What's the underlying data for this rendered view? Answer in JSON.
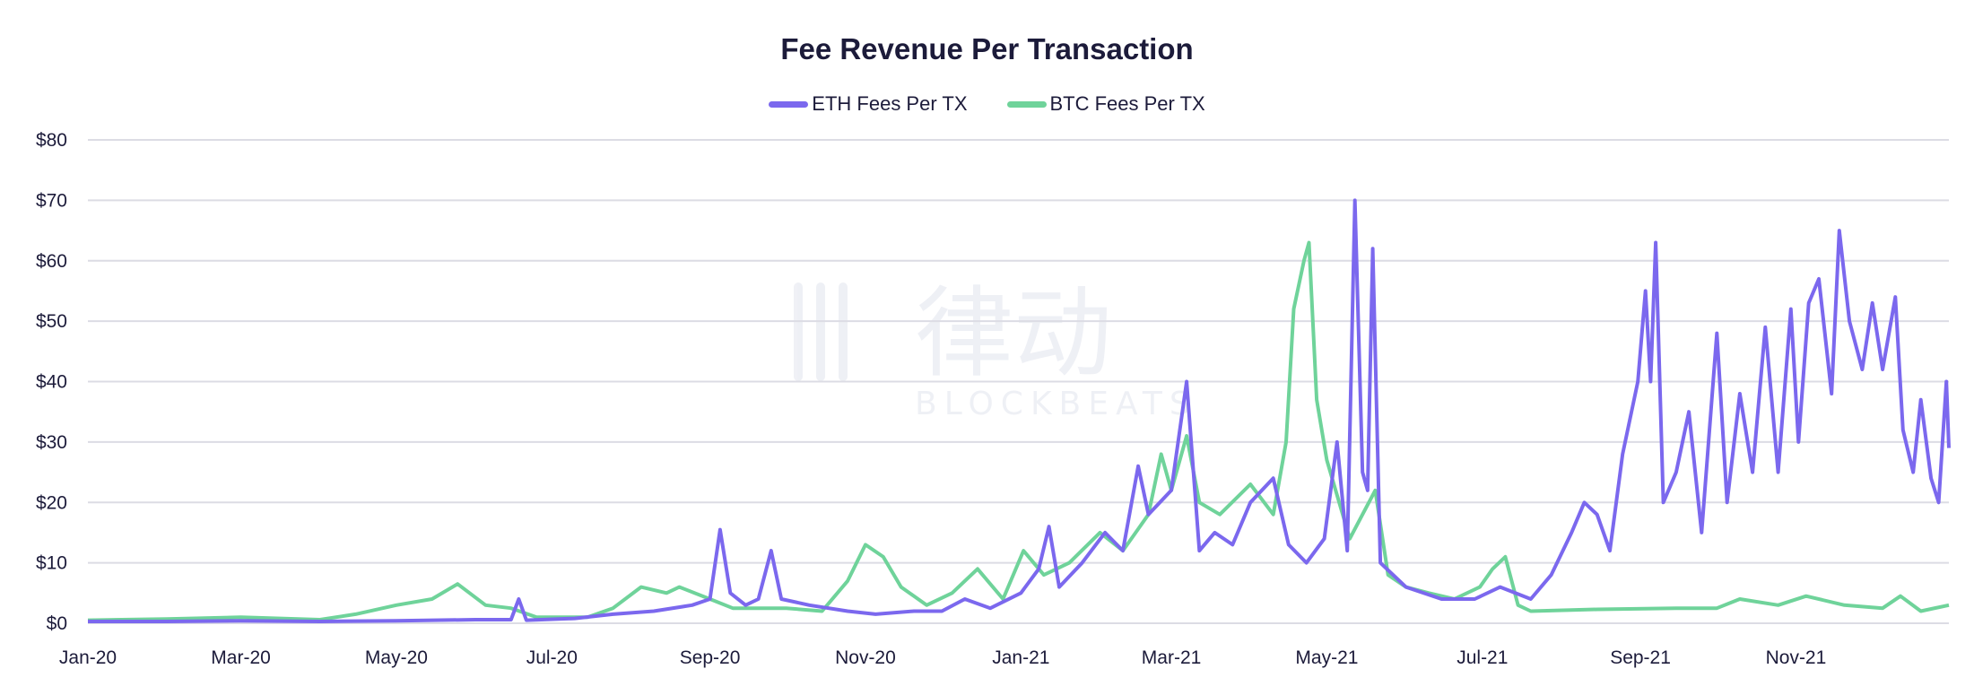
{
  "chart_data": {
    "type": "line",
    "title": "Fee Revenue Per Transaction",
    "xlabel": "",
    "ylabel": "",
    "ylim": [
      0,
      80
    ],
    "xlim": [
      "2020-01-01",
      "2021-12-31"
    ],
    "y_ticks": [
      "$0",
      "$10",
      "$20",
      "$30",
      "$40",
      "$50",
      "$60",
      "$70",
      "$80"
    ],
    "x_ticks": [
      {
        "date": "2020-01-01",
        "label": "Jan-20"
      },
      {
        "date": "2020-03-01",
        "label": "Mar-20"
      },
      {
        "date": "2020-05-01",
        "label": "May-20"
      },
      {
        "date": "2020-07-01",
        "label": "Jul-20"
      },
      {
        "date": "2020-09-01",
        "label": "Sep-20"
      },
      {
        "date": "2020-11-01",
        "label": "Nov-20"
      },
      {
        "date": "2021-01-01",
        "label": "Jan-21"
      },
      {
        "date": "2021-03-01",
        "label": "Mar-21"
      },
      {
        "date": "2021-05-01",
        "label": "May-21"
      },
      {
        "date": "2021-07-01",
        "label": "Jul-21"
      },
      {
        "date": "2021-09-01",
        "label": "Sep-21"
      },
      {
        "date": "2021-11-01",
        "label": "Nov-21"
      }
    ],
    "grid": true,
    "legend_position": "top-center",
    "series": [
      {
        "name": "ETH Fees Per TX",
        "color": "#7b68ee",
        "points": [
          [
            "2020-01-01",
            0.3
          ],
          [
            "2020-02-01",
            0.3
          ],
          [
            "2020-03-01",
            0.4
          ],
          [
            "2020-04-01",
            0.3
          ],
          [
            "2020-05-01",
            0.4
          ],
          [
            "2020-06-01",
            0.6
          ],
          [
            "2020-06-15",
            0.6
          ],
          [
            "2020-06-18",
            4
          ],
          [
            "2020-06-21",
            0.5
          ],
          [
            "2020-07-10",
            0.8
          ],
          [
            "2020-07-25",
            1.5
          ],
          [
            "2020-08-10",
            2
          ],
          [
            "2020-08-25",
            3
          ],
          [
            "2020-09-01",
            4
          ],
          [
            "2020-09-05",
            15.5
          ],
          [
            "2020-09-09",
            5
          ],
          [
            "2020-09-15",
            3
          ],
          [
            "2020-09-20",
            4
          ],
          [
            "2020-09-25",
            12
          ],
          [
            "2020-09-29",
            4
          ],
          [
            "2020-10-10",
            3
          ],
          [
            "2020-10-25",
            2
          ],
          [
            "2020-11-05",
            1.5
          ],
          [
            "2020-11-20",
            2
          ],
          [
            "2020-12-01",
            2
          ],
          [
            "2020-12-10",
            4
          ],
          [
            "2020-12-20",
            2.5
          ],
          [
            "2021-01-01",
            5
          ],
          [
            "2021-01-08",
            9
          ],
          [
            "2021-01-12",
            16
          ],
          [
            "2021-01-16",
            6
          ],
          [
            "2021-01-25",
            10
          ],
          [
            "2021-02-03",
            15
          ],
          [
            "2021-02-10",
            12
          ],
          [
            "2021-02-16",
            26
          ],
          [
            "2021-02-20",
            18
          ],
          [
            "2021-03-01",
            22
          ],
          [
            "2021-03-07",
            40
          ],
          [
            "2021-03-12",
            12
          ],
          [
            "2021-03-18",
            15
          ],
          [
            "2021-03-25",
            13
          ],
          [
            "2021-04-01",
            20
          ],
          [
            "2021-04-10",
            24
          ],
          [
            "2021-04-16",
            13
          ],
          [
            "2021-04-23",
            10
          ],
          [
            "2021-04-30",
            14
          ],
          [
            "2021-05-05",
            30
          ],
          [
            "2021-05-09",
            12
          ],
          [
            "2021-05-12",
            70
          ],
          [
            "2021-05-15",
            25
          ],
          [
            "2021-05-17",
            22
          ],
          [
            "2021-05-19",
            62
          ],
          [
            "2021-05-22",
            10
          ],
          [
            "2021-06-01",
            6
          ],
          [
            "2021-06-15",
            4
          ],
          [
            "2021-06-28",
            4
          ],
          [
            "2021-07-08",
            6
          ],
          [
            "2021-07-20",
            4
          ],
          [
            "2021-07-28",
            8
          ],
          [
            "2021-08-05",
            15
          ],
          [
            "2021-08-10",
            20
          ],
          [
            "2021-08-15",
            18
          ],
          [
            "2021-08-20",
            12
          ],
          [
            "2021-08-25",
            28
          ],
          [
            "2021-08-31",
            40
          ],
          [
            "2021-09-03",
            55
          ],
          [
            "2021-09-05",
            40
          ],
          [
            "2021-09-07",
            63
          ],
          [
            "2021-09-10",
            20
          ],
          [
            "2021-09-15",
            25
          ],
          [
            "2021-09-20",
            35
          ],
          [
            "2021-09-25",
            15
          ],
          [
            "2021-10-01",
            48
          ],
          [
            "2021-10-05",
            20
          ],
          [
            "2021-10-10",
            38
          ],
          [
            "2021-10-15",
            25
          ],
          [
            "2021-10-20",
            49
          ],
          [
            "2021-10-25",
            25
          ],
          [
            "2021-10-30",
            52
          ],
          [
            "2021-11-02",
            30
          ],
          [
            "2021-11-06",
            53
          ],
          [
            "2021-11-10",
            57
          ],
          [
            "2021-11-15",
            38
          ],
          [
            "2021-11-18",
            65
          ],
          [
            "2021-11-22",
            50
          ],
          [
            "2021-11-27",
            42
          ],
          [
            "2021-12-01",
            53
          ],
          [
            "2021-12-05",
            42
          ],
          [
            "2021-12-10",
            54
          ],
          [
            "2021-12-13",
            32
          ],
          [
            "2021-12-17",
            25
          ],
          [
            "2021-12-20",
            37
          ],
          [
            "2021-12-24",
            24
          ],
          [
            "2021-12-27",
            20
          ],
          [
            "2021-12-30",
            40
          ],
          [
            "2021-12-31",
            29
          ]
        ]
      },
      {
        "name": "BTC Fees Per TX",
        "color": "#6fd39a",
        "points": [
          [
            "2020-01-01",
            0.5
          ],
          [
            "2020-02-01",
            0.7
          ],
          [
            "2020-03-01",
            1
          ],
          [
            "2020-04-01",
            0.6
          ],
          [
            "2020-04-15",
            1.5
          ],
          [
            "2020-05-01",
            3
          ],
          [
            "2020-05-15",
            4
          ],
          [
            "2020-05-25",
            6.5
          ],
          [
            "2020-06-05",
            3
          ],
          [
            "2020-06-15",
            2.5
          ],
          [
            "2020-06-25",
            1
          ],
          [
            "2020-07-15",
            1
          ],
          [
            "2020-07-25",
            2.5
          ],
          [
            "2020-08-05",
            6
          ],
          [
            "2020-08-15",
            5
          ],
          [
            "2020-08-20",
            6
          ],
          [
            "2020-09-01",
            4
          ],
          [
            "2020-09-10",
            2.5
          ],
          [
            "2020-10-01",
            2.5
          ],
          [
            "2020-10-15",
            2
          ],
          [
            "2020-10-25",
            7
          ],
          [
            "2020-11-01",
            13
          ],
          [
            "2020-11-08",
            11
          ],
          [
            "2020-11-15",
            6
          ],
          [
            "2020-11-25",
            3
          ],
          [
            "2020-12-05",
            5
          ],
          [
            "2020-12-15",
            9
          ],
          [
            "2020-12-25",
            4
          ],
          [
            "2021-01-02",
            12
          ],
          [
            "2021-01-10",
            8
          ],
          [
            "2021-01-20",
            10
          ],
          [
            "2021-02-01",
            15
          ],
          [
            "2021-02-10",
            12
          ],
          [
            "2021-02-20",
            18
          ],
          [
            "2021-02-25",
            28
          ],
          [
            "2021-03-01",
            22
          ],
          [
            "2021-03-07",
            31
          ],
          [
            "2021-03-12",
            20
          ],
          [
            "2021-03-20",
            18
          ],
          [
            "2021-04-01",
            23
          ],
          [
            "2021-04-10",
            18
          ],
          [
            "2021-04-15",
            30
          ],
          [
            "2021-04-18",
            52
          ],
          [
            "2021-04-22",
            60
          ],
          [
            "2021-04-24",
            63
          ],
          [
            "2021-04-27",
            37
          ],
          [
            "2021-05-01",
            27
          ],
          [
            "2021-05-10",
            14
          ],
          [
            "2021-05-15",
            18
          ],
          [
            "2021-05-20",
            22
          ],
          [
            "2021-05-25",
            8
          ],
          [
            "2021-06-01",
            6
          ],
          [
            "2021-06-10",
            5
          ],
          [
            "2021-06-20",
            4
          ],
          [
            "2021-06-30",
            6
          ],
          [
            "2021-07-05",
            9
          ],
          [
            "2021-07-10",
            11
          ],
          [
            "2021-07-15",
            3
          ],
          [
            "2021-07-20",
            2
          ],
          [
            "2021-08-15",
            2.3
          ],
          [
            "2021-09-15",
            2.5
          ],
          [
            "2021-10-01",
            2.5
          ],
          [
            "2021-10-10",
            4
          ],
          [
            "2021-10-25",
            3
          ],
          [
            "2021-11-05",
            4.5
          ],
          [
            "2021-11-20",
            3
          ],
          [
            "2021-12-05",
            2.5
          ],
          [
            "2021-12-12",
            4.5
          ],
          [
            "2021-12-20",
            2
          ],
          [
            "2021-12-31",
            3
          ]
        ]
      }
    ]
  },
  "watermark": "律动 BLOCKBEATS"
}
